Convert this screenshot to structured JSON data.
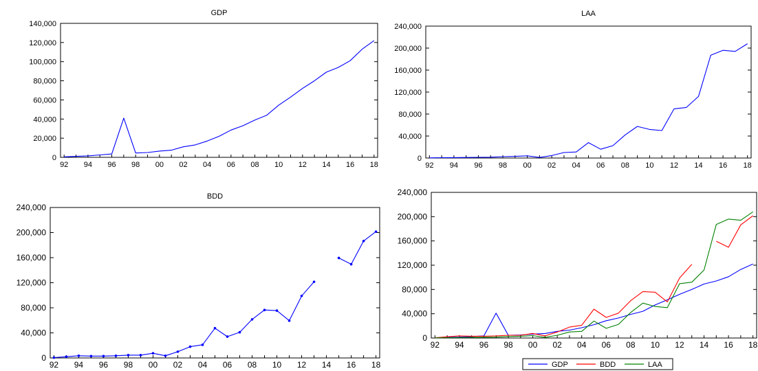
{
  "chart_data": [
    {
      "id": "gdp",
      "type": "line",
      "title": "GDP",
      "xlabel": "",
      "ylabel": "",
      "x": [
        1992,
        1993,
        1994,
        1995,
        1996,
        1997,
        1998,
        1999,
        2000,
        2001,
        2002,
        2003,
        2004,
        2005,
        2006,
        2007,
        2008,
        2009,
        2010,
        2011,
        2012,
        2013,
        2014,
        2015,
        2016,
        2017,
        2018
      ],
      "x_tick_labels": [
        "92",
        "94",
        "96",
        "98",
        "00",
        "02",
        "04",
        "06",
        "08",
        "10",
        "12",
        "14",
        "16",
        "18"
      ],
      "x_tick_values": [
        1992,
        1994,
        1996,
        1998,
        2000,
        2002,
        2004,
        2006,
        2008,
        2010,
        2012,
        2014,
        2016,
        2018
      ],
      "y_tick_labels": [
        "0",
        "20,000",
        "40,000",
        "60,000",
        "80,000",
        "100,000",
        "120,000",
        "140,000"
      ],
      "y_tick_values": [
        0,
        20000,
        40000,
        60000,
        80000,
        100000,
        120000,
        140000
      ],
      "ylim": [
        0,
        140000
      ],
      "grid": false,
      "markers": false,
      "series": [
        {
          "color": "#0000ff",
          "values": [
            500,
            1000,
            1500,
            2500,
            3500,
            41000,
            4500,
            5000,
            6500,
            7500,
            11000,
            13000,
            17000,
            22000,
            28500,
            33000,
            39000,
            44000,
            54500,
            63000,
            72000,
            80000,
            89000,
            94000,
            101000,
            113000,
            122000
          ]
        }
      ]
    },
    {
      "id": "laa",
      "type": "line",
      "title": "LAA",
      "xlabel": "",
      "ylabel": "",
      "x": [
        1992,
        1993,
        1994,
        1995,
        1996,
        1997,
        1998,
        1999,
        2000,
        2001,
        2002,
        2003,
        2004,
        2005,
        2006,
        2007,
        2008,
        2009,
        2010,
        2011,
        2012,
        2013,
        2014,
        2015,
        2016,
        2017,
        2018
      ],
      "x_tick_labels": [
        "92",
        "94",
        "96",
        "98",
        "00",
        "02",
        "04",
        "06",
        "08",
        "10",
        "12",
        "14",
        "16",
        "18"
      ],
      "x_tick_values": [
        1992,
        1994,
        1996,
        1998,
        2000,
        2002,
        2004,
        2006,
        2008,
        2010,
        2012,
        2014,
        2016,
        2018
      ],
      "y_tick_labels": [
        "0",
        "40,000",
        "80,000",
        "120,000",
        "160,000",
        "200,000",
        "240,000"
      ],
      "y_tick_values": [
        0,
        40000,
        80000,
        120000,
        160000,
        200000,
        240000
      ],
      "ylim": [
        0,
        240000
      ],
      "grid": false,
      "markers": false,
      "series": [
        {
          "color": "#0000ff",
          "values": [
            200,
            600,
            800,
            1000,
            1200,
            1500,
            2500,
            3000,
            4000,
            1000,
            4500,
            10000,
            11000,
            28000,
            16000,
            22500,
            42000,
            57500,
            52000,
            50000,
            89500,
            92000,
            112000,
            187000,
            196000,
            194000,
            208000
          ]
        }
      ]
    },
    {
      "id": "bdd",
      "type": "line",
      "title": "BDD",
      "xlabel": "",
      "ylabel": "",
      "x": [
        1992,
        1993,
        1994,
        1995,
        1996,
        1997,
        1998,
        1999,
        2000,
        2001,
        2002,
        2003,
        2004,
        2005,
        2006,
        2007,
        2008,
        2009,
        2010,
        2011,
        2012,
        2013,
        2014,
        2015,
        2016,
        2017,
        2018
      ],
      "x_tick_labels": [
        "92",
        "94",
        "96",
        "98",
        "00",
        "02",
        "04",
        "06",
        "08",
        "10",
        "12",
        "14",
        "16",
        "18"
      ],
      "x_tick_values": [
        1992,
        1994,
        1996,
        1998,
        2000,
        2002,
        2004,
        2006,
        2008,
        2010,
        2012,
        2014,
        2016,
        2018
      ],
      "y_tick_labels": [
        "0",
        "40,000",
        "80,000",
        "120,000",
        "160,000",
        "200,000",
        "240,000"
      ],
      "y_tick_values": [
        0,
        40000,
        80000,
        120000,
        160000,
        200000,
        240000
      ],
      "ylim": [
        0,
        240000
      ],
      "grid": false,
      "markers": true,
      "series": [
        {
          "color": "#0000ff",
          "values": [
            500,
            2000,
            3500,
            3000,
            3000,
            3500,
            4500,
            4500,
            7500,
            3500,
            10000,
            18000,
            21000,
            47500,
            34000,
            41000,
            61500,
            76500,
            75500,
            59500,
            99000,
            121500,
            null,
            159500,
            149500,
            186500,
            201500
          ]
        }
      ]
    },
    {
      "id": "combined",
      "type": "line",
      "title": "",
      "xlabel": "",
      "ylabel": "",
      "x": [
        1992,
        1993,
        1994,
        1995,
        1996,
        1997,
        1998,
        1999,
        2000,
        2001,
        2002,
        2003,
        2004,
        2005,
        2006,
        2007,
        2008,
        2009,
        2010,
        2011,
        2012,
        2013,
        2014,
        2015,
        2016,
        2017,
        2018
      ],
      "x_tick_labels": [
        "92",
        "94",
        "96",
        "98",
        "00",
        "02",
        "04",
        "06",
        "08",
        "10",
        "12",
        "14",
        "16",
        "18"
      ],
      "x_tick_values": [
        1992,
        1994,
        1996,
        1998,
        2000,
        2002,
        2004,
        2006,
        2008,
        2010,
        2012,
        2014,
        2016,
        2018
      ],
      "y_tick_labels": [
        "0",
        "40,000",
        "80,000",
        "120,000",
        "160,000",
        "200,000",
        "240,000"
      ],
      "y_tick_values": [
        0,
        40000,
        80000,
        120000,
        160000,
        200000,
        240000
      ],
      "ylim": [
        0,
        240000
      ],
      "grid": false,
      "markers": false,
      "legend": "bottom",
      "series": [
        {
          "name": "GDP",
          "color": "#0000ff",
          "values": [
            500,
            1000,
            1500,
            2500,
            3500,
            41000,
            4500,
            5000,
            6500,
            7500,
            11000,
            13000,
            17000,
            22000,
            28500,
            33000,
            39000,
            44000,
            54500,
            63000,
            72000,
            80000,
            89000,
            94000,
            101000,
            113000,
            122000
          ]
        },
        {
          "name": "BDD",
          "color": "#ff0000",
          "values": [
            500,
            2000,
            3500,
            3000,
            3000,
            3500,
            4500,
            4500,
            7500,
            3500,
            10000,
            18000,
            21000,
            47500,
            34000,
            41000,
            61500,
            76500,
            75500,
            59500,
            99000,
            121500,
            null,
            159500,
            149500,
            186500,
            201500
          ]
        },
        {
          "name": "LAA",
          "color": "#008000",
          "values": [
            200,
            600,
            800,
            1000,
            1200,
            1500,
            2500,
            3000,
            4000,
            1000,
            4500,
            10000,
            11000,
            28000,
            16000,
            22500,
            42000,
            57500,
            52000,
            50000,
            89500,
            92000,
            112000,
            187000,
            196000,
            194000,
            208000
          ]
        }
      ]
    }
  ]
}
